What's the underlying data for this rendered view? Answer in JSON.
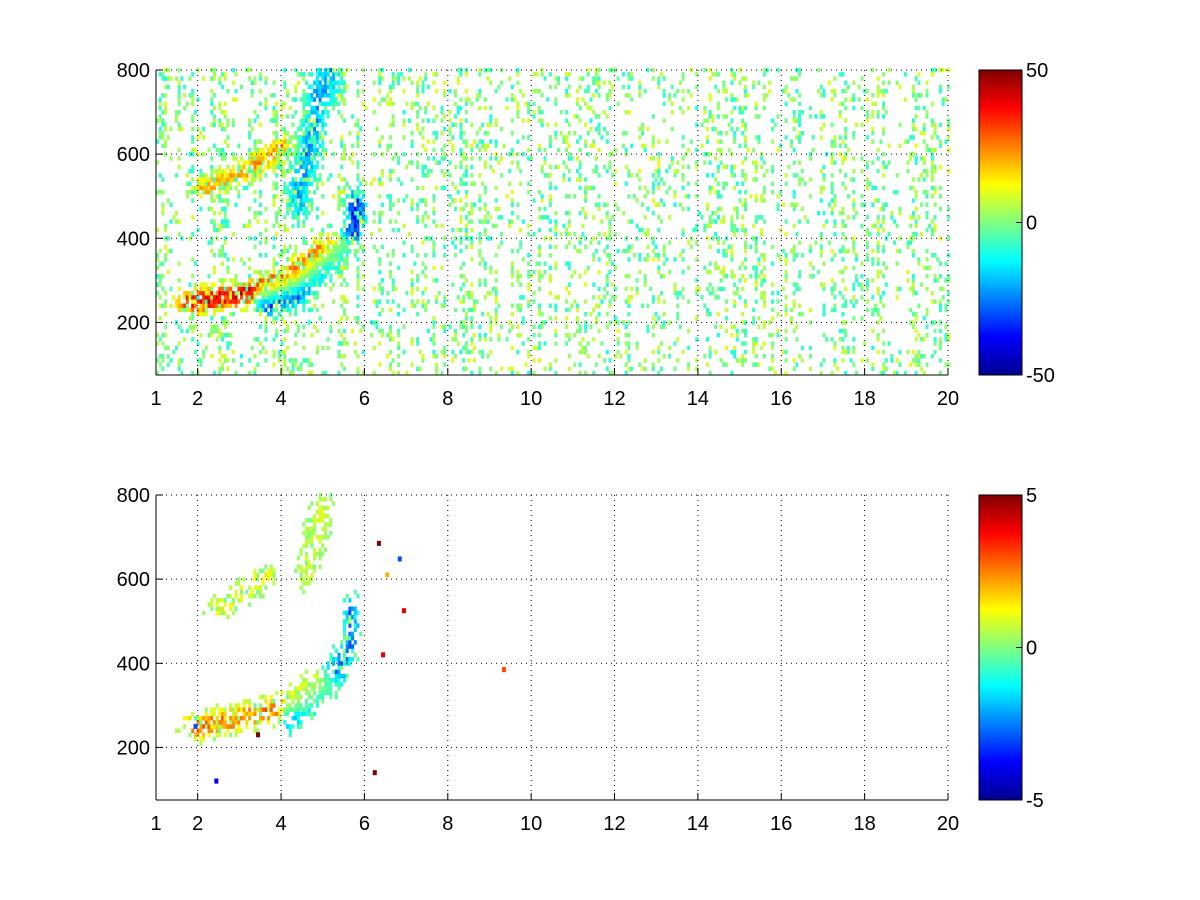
{
  "chart_data": [
    {
      "type": "heatmap",
      "title": "",
      "xlabel": "",
      "ylabel": "",
      "xlim": [
        1,
        20
      ],
      "ylim": [
        75,
        800
      ],
      "xticks": [
        1,
        2,
        4,
        6,
        8,
        10,
        12,
        14,
        16,
        18,
        20
      ],
      "yticks": [
        200,
        400,
        600,
        800
      ],
      "grid": true,
      "colormap": "jet",
      "clim": [
        -50,
        50
      ],
      "colorbar_ticks": [
        -50,
        0,
        50
      ],
      "features": [
        {
          "desc": "positive ridge",
          "points": [
            [
              1.9,
              250
            ],
            [
              2.8,
              262
            ],
            [
              3.5,
              278
            ],
            [
              4.2,
              300
            ],
            [
              4.8,
              340
            ],
            [
              5.3,
              380
            ]
          ],
          "value": 45,
          "xw": 0.45,
          "yw": 30,
          "density": 0.9
        },
        {
          "desc": "negative ridge",
          "points": [
            [
              3.6,
              250
            ],
            [
              4.4,
              280
            ],
            [
              5.0,
              330
            ],
            [
              5.5,
              380
            ],
            [
              5.8,
              430
            ],
            [
              5.8,
              480
            ]
          ],
          "value": -45,
          "xw": 0.22,
          "yw": 35,
          "density": 0.9
        },
        {
          "desc": "upper positive band",
          "points": [
            [
              2.2,
              520
            ],
            [
              2.8,
              545
            ],
            [
              3.5,
              580
            ],
            [
              4.0,
              620
            ]
          ],
          "value": 25,
          "xw": 0.35,
          "yw": 25,
          "density": 0.8
        },
        {
          "desc": "upper negative band",
          "points": [
            [
              4.4,
              500
            ],
            [
              4.7,
              620
            ],
            [
              4.9,
              740
            ],
            [
              5.2,
              790
            ]
          ],
          "value": -25,
          "xw": 0.28,
          "yw": 60,
          "density": 0.8
        }
      ],
      "noise": {
        "value_range": [
          -10,
          10
        ],
        "density": 0.15
      },
      "outliers": []
    },
    {
      "type": "heatmap",
      "title": "",
      "xlabel": "",
      "ylabel": "",
      "xlim": [
        1,
        20
      ],
      "ylim": [
        75,
        800
      ],
      "xticks": [
        1,
        2,
        4,
        6,
        8,
        10,
        12,
        14,
        16,
        18,
        20
      ],
      "yticks": [
        200,
        400,
        600,
        800
      ],
      "grid": true,
      "colormap": "jet",
      "clim": [
        -5,
        5
      ],
      "colorbar_ticks": [
        -5,
        0,
        5
      ],
      "features": [
        {
          "desc": "positive ridge",
          "points": [
            [
              2.0,
              250
            ],
            [
              2.8,
              265
            ],
            [
              3.6,
              285
            ],
            [
              4.3,
              310
            ],
            [
              4.9,
              350
            ]
          ],
          "value": 3,
          "xw": 0.4,
          "yw": 30,
          "density": 0.65
        },
        {
          "desc": "negative ridge",
          "points": [
            [
              4.2,
              280
            ],
            [
              4.9,
              330
            ],
            [
              5.4,
              390
            ],
            [
              5.7,
              460
            ],
            [
              5.7,
              520
            ]
          ],
          "value": -3,
          "xw": 0.2,
          "yw": 40,
          "density": 0.65
        },
        {
          "desc": "upper band",
          "points": [
            [
              2.5,
              530
            ],
            [
              3.0,
              560
            ],
            [
              3.6,
              610
            ]
          ],
          "value": 1.5,
          "xw": 0.3,
          "yw": 25,
          "density": 0.5
        },
        {
          "desc": "upper cluster",
          "points": [
            [
              4.6,
              620
            ],
            [
              4.8,
              700
            ],
            [
              5.0,
              760
            ]
          ],
          "value": 1,
          "xw": 0.25,
          "yw": 40,
          "density": 0.5
        }
      ],
      "noise": {
        "value_range": [
          -1,
          1
        ],
        "density": 0
      },
      "outliers": [
        {
          "x": 9.3,
          "y": 385,
          "value": 3
        },
        {
          "x": 6.3,
          "y": 685,
          "value": 5
        },
        {
          "x": 6.8,
          "y": 648,
          "value": -3
        },
        {
          "x": 6.5,
          "y": 610,
          "value": 2
        },
        {
          "x": 6.9,
          "y": 525,
          "value": 4
        },
        {
          "x": 6.2,
          "y": 140,
          "value": 5
        },
        {
          "x": 1.9,
          "y": 250,
          "value": -3
        },
        {
          "x": 3.4,
          "y": 230,
          "value": 5
        },
        {
          "x": 2.4,
          "y": 120,
          "value": -4
        },
        {
          "x": 6.4,
          "y": 420,
          "value": 4
        }
      ]
    }
  ]
}
